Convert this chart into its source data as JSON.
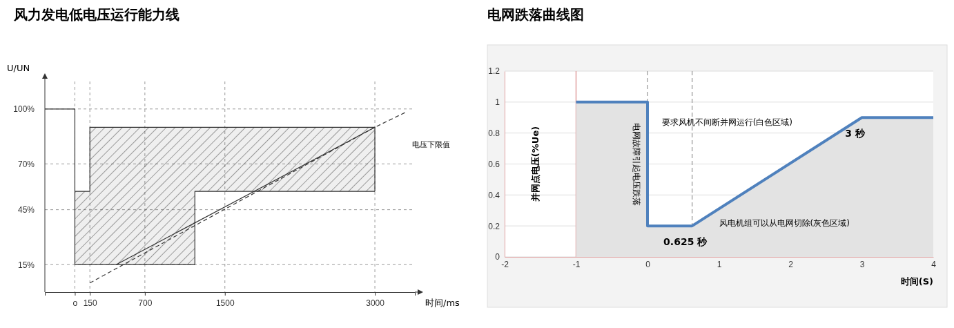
{
  "chart_data": [
    {
      "type": "line",
      "title": "风力发电低电压运行能力线",
      "xlabel": "时间/ms",
      "ylabel": "U/UN",
      "xlim": [
        -300,
        3400
      ],
      "ylim": [
        0,
        115
      ],
      "xticks": [
        {
          "value": 0,
          "label": "o"
        },
        150,
        700,
        1500,
        3000
      ],
      "yticks": [
        {
          "value": 15,
          "label": "15%"
        },
        {
          "value": 45,
          "label": "45%"
        },
        {
          "value": 70,
          "label": "70%"
        },
        {
          "value": 100,
          "label": "100%"
        }
      ],
      "grid": true,
      "series": [
        {
          "color": "#333333",
          "x": [
            -300,
            0,
            0,
            150,
            150,
            3000,
            3000
          ],
          "values": [
            100,
            100,
            55,
            55,
            90,
            90,
            55
          ]
        },
        {
          "color": "#333333",
          "x": [
            0,
            0,
            1200,
            1200,
            3000
          ],
          "values": [
            55,
            15,
            15,
            55,
            55
          ]
        },
        {
          "color": "#333333",
          "x": [
            413,
            3000
          ],
          "values": [
            15,
            90
          ]
        },
        {
          "name": "电压下限值",
          "color": "#333333",
          "line_style": "dashed",
          "x": [
            150,
            3000,
            3300
          ],
          "values": [
            5,
            90,
            98
          ]
        }
      ]
    },
    {
      "type": "area",
      "title": "电网跌落曲线图",
      "xlabel": "时间(S)",
      "ylabel": "并网点电压(%Ue)",
      "xlim": [
        -2,
        4
      ],
      "ylim": [
        0,
        1.2
      ],
      "xticks": [
        -2,
        -1,
        0,
        1,
        2,
        3,
        4
      ],
      "yticks": [
        0,
        0.2,
        0.4,
        0.6,
        0.8,
        1,
        1.2
      ],
      "grid": "y",
      "ref_lines": [
        {
          "axis": "x",
          "value": -1,
          "color": "#e0a0a0",
          "line_style": "solid"
        },
        {
          "axis": "x",
          "value": 0,
          "color": "#aaaaaa",
          "line_style": "dashed",
          "label": "电网故障引起电压跌落"
        },
        {
          "axis": "x",
          "value": 0.625,
          "color": "#aaaaaa",
          "line_style": "dashed"
        }
      ],
      "series": [
        {
          "color": "#4f81bd",
          "x": [
            -1,
            0,
            0,
            0.625,
            3,
            4
          ],
          "values": [
            1,
            1,
            0.2,
            0.2,
            0.9,
            0.9
          ]
        }
      ],
      "annotations": [
        "要求风机不间断并网运行(白色区域)",
        "风电机组可以从电网切除(灰色区域)",
        {
          "text": "0.625 秒",
          "x": 0.625,
          "y": 0.2
        },
        {
          "text": "3 秒",
          "x": 3,
          "y": 0.9
        }
      ]
    }
  ]
}
